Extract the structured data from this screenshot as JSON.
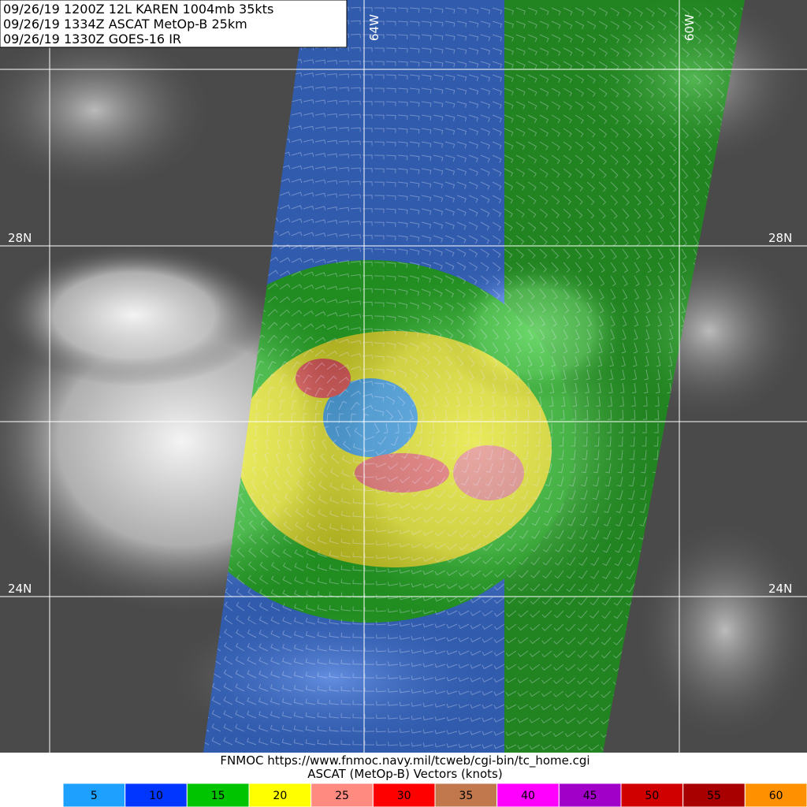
{
  "header": {
    "lines": [
      "09/26/19 1200Z  12L KAREN 1004mb 35kts",
      "09/26/19 1334Z  ASCAT MetOp-B 25km",
      "09/26/19 1330Z  GOES-16 IR"
    ]
  },
  "grid": {
    "latitudes": [
      "28N",
      "24N"
    ],
    "longitudes": [
      "64W",
      "60W"
    ]
  },
  "footer": {
    "source": "FNMOC https://www.fnmoc.navy.mil/tcweb/cgi-bin/tc_home.cgi",
    "title": "ASCAT (MetOp-B) Vectors (knots)"
  },
  "legend": {
    "items": [
      {
        "value": 5,
        "color": "#1ea0ff"
      },
      {
        "value": 10,
        "color": "#0036ff"
      },
      {
        "value": 15,
        "color": "#00c400"
      },
      {
        "value": 20,
        "color": "#ffff00"
      },
      {
        "value": 25,
        "color": "#ff8a80"
      },
      {
        "value": 30,
        "color": "#ff0000"
      },
      {
        "value": 35,
        "color": "#c0784c"
      },
      {
        "value": 40,
        "color": "#ff00ff"
      },
      {
        "value": 45,
        "color": "#a000c8"
      },
      {
        "value": 50,
        "color": "#d00000"
      },
      {
        "value": 55,
        "color": "#a80000"
      },
      {
        "value": 60,
        "color": "#ff9000"
      }
    ]
  }
}
